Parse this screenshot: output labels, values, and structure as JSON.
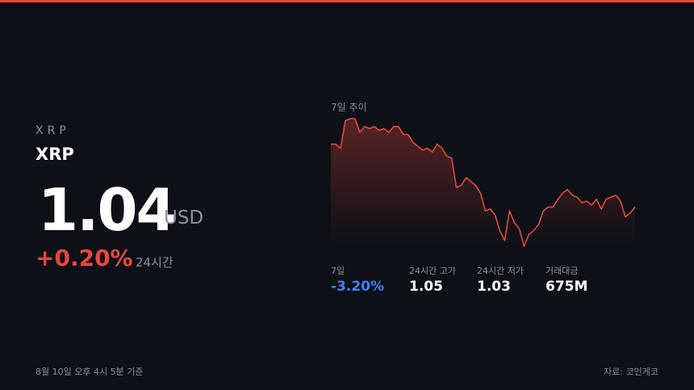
{
  "coin": {
    "symbol": "XRP",
    "name": "XRP",
    "price": "1.04",
    "currency": "USD",
    "change": "+0.20%",
    "change_period": "24시간"
  },
  "chart_data": {
    "type": "line",
    "title": "7일 추이",
    "color": "#e5483d",
    "values": [
      1.074,
      1.074,
      1.072,
      1.086,
      1.087,
      1.087,
      1.08,
      1.083,
      1.082,
      1.083,
      1.081,
      1.082,
      1.08,
      1.083,
      1.083,
      1.079,
      1.079,
      1.075,
      1.073,
      1.071,
      1.072,
      1.07,
      1.074,
      1.072,
      1.068,
      1.067,
      1.052,
      1.053,
      1.057,
      1.055,
      1.053,
      1.049,
      1.04,
      1.041,
      1.038,
      1.03,
      1.025,
      1.04,
      1.034,
      1.031,
      1.022,
      1.028,
      1.03,
      1.033,
      1.04,
      1.042,
      1.042,
      1.046,
      1.049,
      1.051,
      1.048,
      1.047,
      1.044,
      1.045,
      1.043,
      1.046,
      1.041,
      1.046,
      1.047,
      1.048,
      1.045,
      1.037,
      1.039,
      1.042
    ]
  },
  "stats": [
    {
      "label": "7일",
      "value": "-3.20%",
      "color": "#3b82f6"
    },
    {
      "label": "24시간 고가",
      "value": "1.05",
      "color": "#ffffff"
    },
    {
      "label": "24시간 저가",
      "value": "1.03",
      "color": "#ffffff"
    },
    {
      "label": "거래대금",
      "value": "675M",
      "color": "#ffffff"
    }
  ],
  "footer": {
    "timestamp": "8월 10일 오후 4시 5분 기준",
    "source": "자료: 코인게코"
  }
}
